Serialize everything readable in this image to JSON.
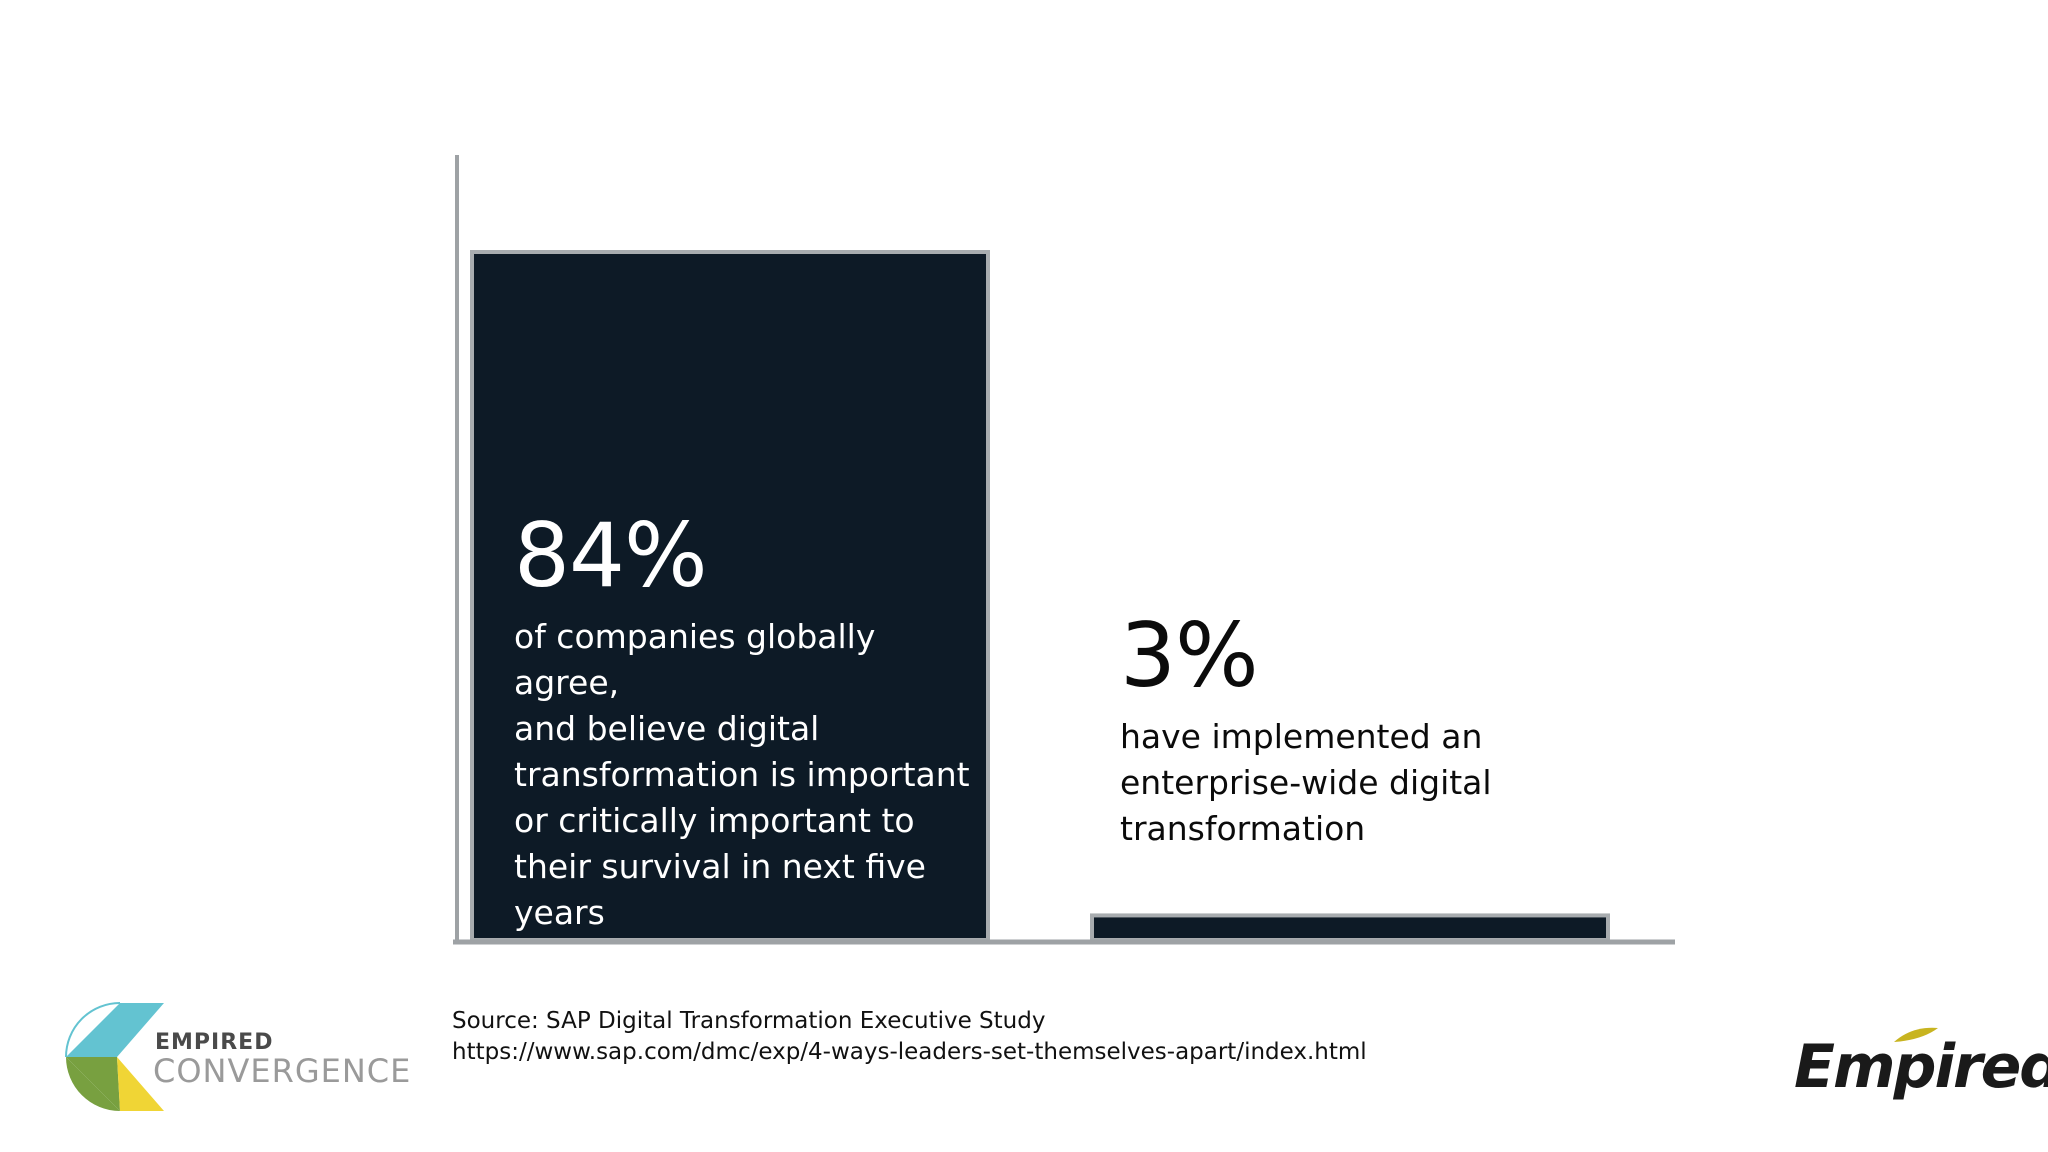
{
  "chart_data": {
    "type": "bar",
    "categories": [
      "84%",
      "3%"
    ],
    "values": [
      84,
      3
    ],
    "ylim": [
      0,
      100
    ],
    "bars": [
      {
        "value_label": "84%",
        "description": [
          "of companies globally agree,",
          "and believe digital",
          "transformation is important",
          "or critically important to",
          "their survival in next five",
          "years"
        ]
      },
      {
        "value_label": "3%",
        "description": [
          "have implemented an",
          "enterprise-wide digital",
          "transformation"
        ]
      }
    ],
    "grid": false,
    "legend": "none"
  },
  "source": {
    "line1": "Source: SAP Digital Transformation Executive Study",
    "line2": "https://www.sap.com/dmc/exp/4-ways-leaders-set-themselves-apart/index.html"
  },
  "logos": {
    "left": {
      "word_top": "EMPIRED",
      "word_bottom": "CONVERGENCE"
    },
    "right": {
      "brand": "Empired"
    }
  },
  "colors": {
    "bar_fill": "#0d1a26",
    "bar_border": "#a8acaf",
    "axis": "#9ea2a5",
    "logo_teal": "#63c3d1",
    "logo_green": "#78a040",
    "logo_yellow": "#f0d535",
    "brand_accent": "#c8b420"
  }
}
